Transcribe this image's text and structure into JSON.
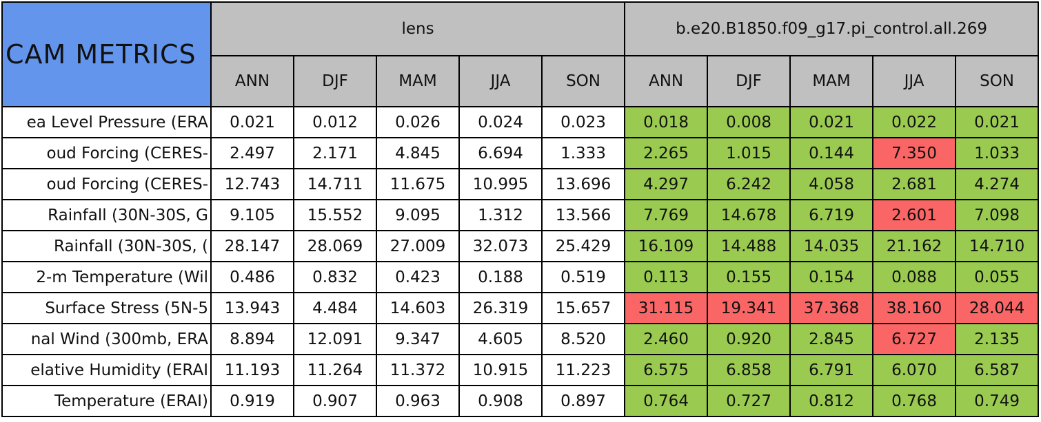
{
  "table": {
    "corner": "CAM METRICS",
    "groups": [
      {
        "name": "lens",
        "columns": [
          "ANN",
          "DJF",
          "MAM",
          "JJA",
          "SON"
        ]
      },
      {
        "name": "b.e20.B1850.f09_g17.pi_control.all.269",
        "columns": [
          "ANN",
          "DJF",
          "MAM",
          "JJA",
          "SON"
        ]
      }
    ],
    "rows": [
      {
        "label": "ea Level Pressure (ERA",
        "cells": [
          "0.021",
          "0.012",
          "0.026",
          "0.024",
          "0.023",
          "0.018",
          "0.008",
          "0.021",
          "0.022",
          "0.021"
        ],
        "colors": [
          "#ffffff",
          "#ffffff",
          "#ffffff",
          "#ffffff",
          "#ffffff",
          "#9acb50",
          "#9acb50",
          "#9acb50",
          "#9acb50",
          "#9acb50"
        ]
      },
      {
        "label": "oud Forcing (CERES-",
        "cells": [
          "2.497",
          "2.171",
          "4.845",
          "6.694",
          "1.333",
          "2.265",
          "1.015",
          "0.144",
          "7.350",
          "1.033"
        ],
        "colors": [
          "#ffffff",
          "#ffffff",
          "#ffffff",
          "#ffffff",
          "#ffffff",
          "#9acb50",
          "#9acb50",
          "#9acb50",
          "#fa6565",
          "#9acb50"
        ]
      },
      {
        "label": "oud Forcing (CERES-",
        "cells": [
          "12.743",
          "14.711",
          "11.675",
          "10.995",
          "13.696",
          "4.297",
          "6.242",
          "4.058",
          "2.681",
          "4.274"
        ],
        "colors": [
          "#ffffff",
          "#ffffff",
          "#ffffff",
          "#ffffff",
          "#ffffff",
          "#9acb50",
          "#9acb50",
          "#9acb50",
          "#9acb50",
          "#9acb50"
        ]
      },
      {
        "label": "Rainfall (30N-30S, G",
        "cells": [
          "9.105",
          "15.552",
          "9.095",
          "1.312",
          "13.566",
          "7.769",
          "14.678",
          "6.719",
          "2.601",
          "7.098"
        ],
        "colors": [
          "#ffffff",
          "#ffffff",
          "#ffffff",
          "#ffffff",
          "#ffffff",
          "#9acb50",
          "#9acb50",
          "#9acb50",
          "#fa6565",
          "#9acb50"
        ]
      },
      {
        "label": "Rainfall (30N-30S, (",
        "cells": [
          "28.147",
          "28.069",
          "27.009",
          "32.073",
          "25.429",
          "16.109",
          "14.488",
          "14.035",
          "21.162",
          "14.710"
        ],
        "colors": [
          "#ffffff",
          "#ffffff",
          "#ffffff",
          "#ffffff",
          "#ffffff",
          "#9acb50",
          "#9acb50",
          "#9acb50",
          "#9acb50",
          "#9acb50"
        ]
      },
      {
        "label": "2-m Temperature (Wil",
        "cells": [
          "0.486",
          "0.832",
          "0.423",
          "0.188",
          "0.519",
          "0.113",
          "0.155",
          "0.154",
          "0.088",
          "0.055"
        ],
        "colors": [
          "#ffffff",
          "#ffffff",
          "#ffffff",
          "#ffffff",
          "#ffffff",
          "#9acb50",
          "#9acb50",
          "#9acb50",
          "#9acb50",
          "#9acb50"
        ]
      },
      {
        "label": "Surface Stress (5N-5",
        "cells": [
          "13.943",
          "4.484",
          "14.603",
          "26.319",
          "15.657",
          "31.115",
          "19.341",
          "37.368",
          "38.160",
          "28.044"
        ],
        "colors": [
          "#ffffff",
          "#ffffff",
          "#ffffff",
          "#ffffff",
          "#ffffff",
          "#fa6565",
          "#fa6565",
          "#fa6565",
          "#fa6565",
          "#fa6565"
        ]
      },
      {
        "label": "nal Wind (300mb, ERA",
        "cells": [
          "8.894",
          "12.091",
          "9.347",
          "4.605",
          "8.520",
          "2.460",
          "0.920",
          "2.845",
          "6.727",
          "2.135"
        ],
        "colors": [
          "#ffffff",
          "#ffffff",
          "#ffffff",
          "#ffffff",
          "#ffffff",
          "#9acb50",
          "#9acb50",
          "#9acb50",
          "#fa6565",
          "#9acb50"
        ]
      },
      {
        "label": "elative Humidity (ERAI",
        "cells": [
          "11.193",
          "11.264",
          "11.372",
          "10.915",
          "11.223",
          "6.575",
          "6.858",
          "6.791",
          "6.070",
          "6.587"
        ],
        "colors": [
          "#ffffff",
          "#ffffff",
          "#ffffff",
          "#ffffff",
          "#ffffff",
          "#9acb50",
          "#9acb50",
          "#9acb50",
          "#9acb50",
          "#9acb50"
        ]
      },
      {
        "label": "Temperature (ERAI)",
        "cells": [
          "0.919",
          "0.907",
          "0.963",
          "0.908",
          "0.897",
          "0.764",
          "0.727",
          "0.812",
          "0.768",
          "0.749"
        ],
        "colors": [
          "#ffffff",
          "#ffffff",
          "#ffffff",
          "#ffffff",
          "#ffffff",
          "#9acb50",
          "#9acb50",
          "#9acb50",
          "#9acb50",
          "#9acb50"
        ]
      }
    ]
  }
}
